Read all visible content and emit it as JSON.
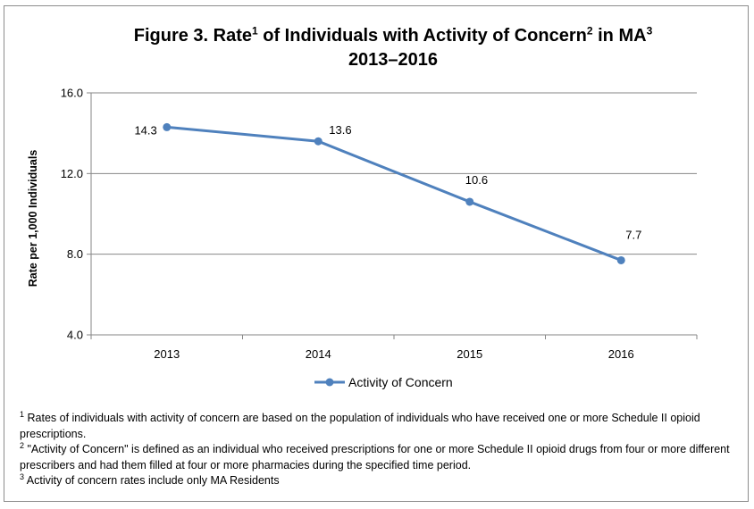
{
  "chart_data": {
    "type": "line",
    "title": {
      "part1": "Figure 3. Rate",
      "sup1": "1",
      "part2": " of Individuals with Activity of Concern",
      "sup2": "2",
      "part3": " in MA",
      "sup3": "3",
      "line2": "2013–2016"
    },
    "ylabel": "Rate per 1,000 Individuals",
    "ylim": [
      4.0,
      16.0
    ],
    "yticks": [
      "4.0",
      "8.0",
      "12.0",
      "16.0"
    ],
    "categories": [
      "2013",
      "2014",
      "2015",
      "2016"
    ],
    "series": [
      {
        "name": "Activity of Concern",
        "values": [
          14.3,
          13.6,
          10.6,
          7.7
        ],
        "labels": [
          "14.3",
          "13.6",
          "10.6",
          "7.7"
        ],
        "color": "#4f81bd"
      }
    ],
    "grid": "horizontal",
    "legend_position": "bottom"
  },
  "footnotes": [
    {
      "mark": "1",
      "text": "  Rates of individuals with activity of concern are based on the population of individuals  who have received one or more Schedule II opioid prescriptions."
    },
    {
      "mark": "2",
      "text": " \"Activity of Concern\"  is defined as an individual  who received prescriptions for one or more Schedule II opioid drugs from four or more different prescribers and had them filled at four or more pharmacies during the specified time period."
    },
    {
      "mark": "3",
      "text": " Activity of concern rates include only MA Residents"
    }
  ],
  "colors": {
    "series": "#4f81bd",
    "grid": "#868686",
    "axis": "#868686"
  }
}
